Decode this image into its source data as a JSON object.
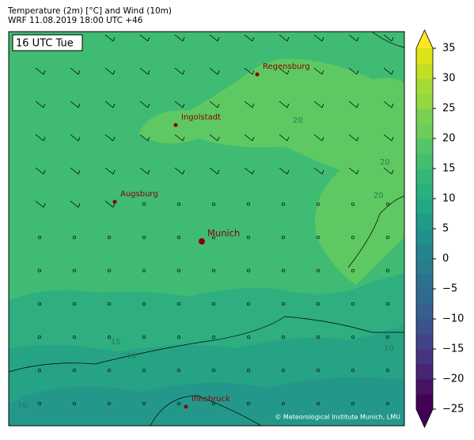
{
  "header": {
    "title": "Temperature (2m) [°C] and Wind (10m)",
    "subtitle": "WRF 11.08.2019 18:00 UTC +46"
  },
  "time_label": "16 UTC Tue",
  "cities": [
    {
      "name": "Regensburg",
      "major": false
    },
    {
      "name": "Ingolstadt",
      "major": false
    },
    {
      "name": "Augsburg",
      "major": false
    },
    {
      "name": "Munich",
      "major": true
    },
    {
      "name": "Innsbruck",
      "major": false
    }
  ],
  "contour_labels": [
    "20",
    "20",
    "20",
    "15",
    "10",
    "10",
    "10"
  ],
  "credit": "© Meteorological Institute Munich, LMU",
  "colorbar": {
    "lim": [
      -25,
      35
    ],
    "ticks": [
      {
        "value": -25,
        "label": "−25"
      },
      {
        "value": -20,
        "label": "−20"
      },
      {
        "value": -15,
        "label": "−15"
      },
      {
        "value": -10,
        "label": "−10"
      },
      {
        "value": -5,
        "label": "−5"
      },
      0,
      5,
      10,
      15,
      20,
      25,
      30,
      35
    ],
    "colors": [
      "#440154",
      "#471365",
      "#482475",
      "#463480",
      "#414487",
      "#3b528b",
      "#355f8d",
      "#306a8e",
      "#2c728e",
      "#287d8e",
      "#25858e",
      "#21918c",
      "#1e9c89",
      "#22a884",
      "#2ab07f",
      "#35b779",
      "#44bf70",
      "#54c568",
      "#6ccd5a",
      "#7ad151",
      "#95d840",
      "#a5db36",
      "#c2df23",
      "#dde318"
    ],
    "under_color": "#440154",
    "over_color": "#fde725"
  }
}
